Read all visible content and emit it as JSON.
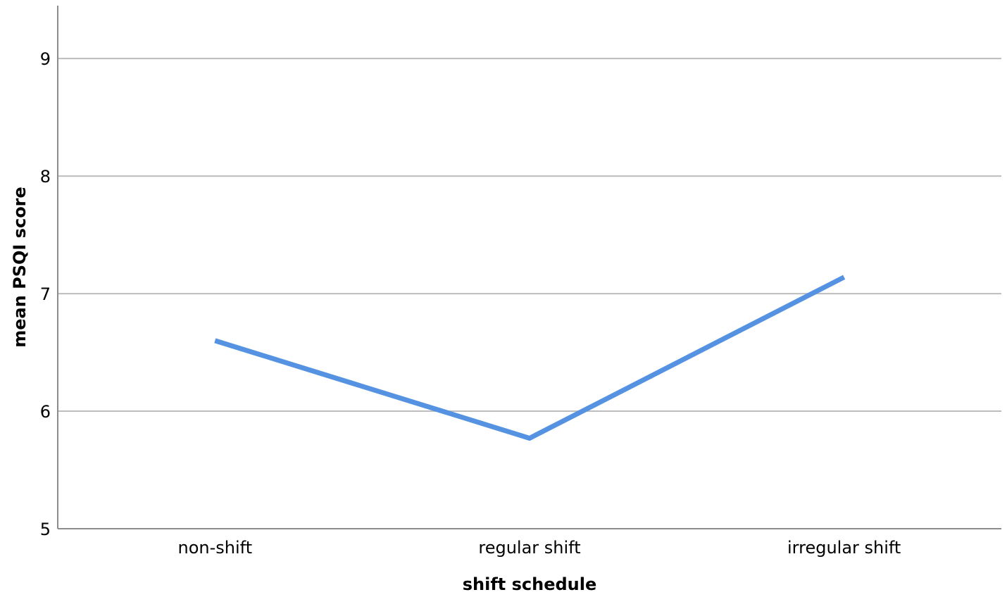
{
  "chart_data": {
    "type": "line",
    "categories": [
      "non-shift",
      "regular shift",
      "irregular shift"
    ],
    "series": [
      {
        "values": [
          6.6,
          5.77,
          7.14
        ],
        "color": "#5592E2"
      }
    ],
    "xlabel": "shift schedule",
    "ylabel": "mean PSQI score",
    "ylim": [
      5,
      9.45
    ],
    "yticks": [
      5,
      6,
      7,
      8,
      9
    ],
    "grid": true,
    "colors": {
      "line": "#5592E2",
      "grid": "#BDBDBD",
      "axis": "#8C8C8C"
    }
  }
}
